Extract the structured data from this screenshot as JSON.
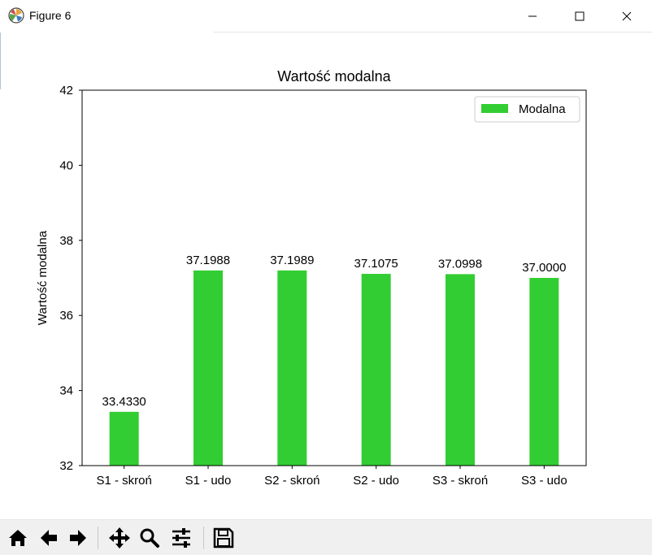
{
  "window": {
    "title": "Figure 6"
  },
  "chart_data": {
    "type": "bar",
    "title": "Wartość modalna",
    "xlabel": "",
    "ylabel": "Wartość modalna",
    "categories": [
      "S1 - skroń",
      "S1 - udo",
      "S2 - skroń",
      "S2 - udo",
      "S3 - skroń",
      "S3 - udo"
    ],
    "series": [
      {
        "name": "Modalna",
        "values": [
          33.433,
          37.1988,
          37.1989,
          37.1075,
          37.0998,
          37.0
        ],
        "color": "#32cd32"
      }
    ],
    "data_labels": [
      "33.4330",
      "37.1988",
      "37.1989",
      "37.1075",
      "37.0998",
      "37.0000"
    ],
    "ylim": [
      32,
      42
    ],
    "yticks": [
      "32",
      "34",
      "36",
      "38",
      "40",
      "42"
    ],
    "legend": "top-right",
    "grid": false
  },
  "toolbar": {
    "icons": [
      "home-icon",
      "back-arrow-icon",
      "forward-arrow-icon",
      "pan-icon",
      "zoom-icon",
      "configure-subplots-icon",
      "save-icon"
    ]
  }
}
